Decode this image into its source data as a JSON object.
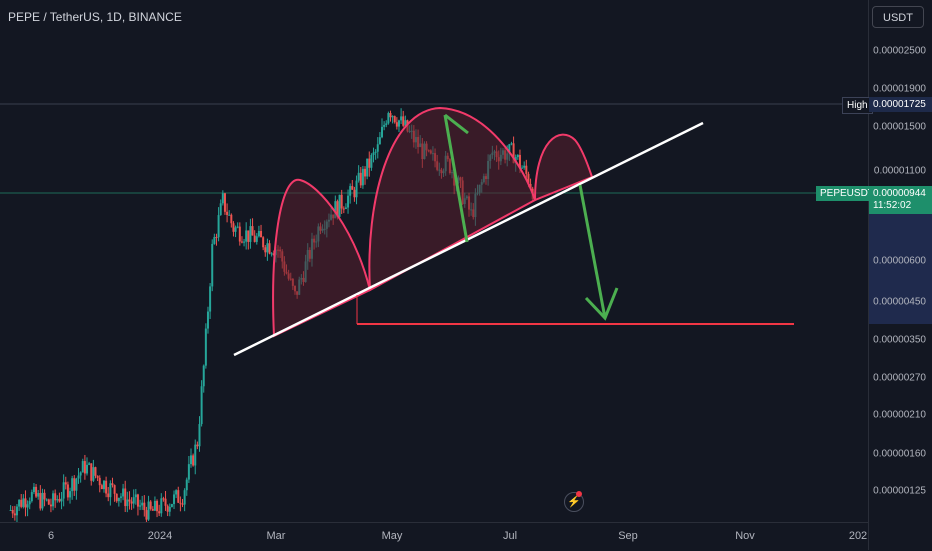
{
  "header": {
    "title": "PEPE / TetherUS, 1D, BINANCE"
  },
  "currency_button": "USDT",
  "price_axis": {
    "labels": [
      "0.00002500",
      "0.00001900",
      "0.00001500",
      "0.00001100",
      "0.00000600",
      "0.00000450",
      "0.00000350",
      "0.00000270",
      "0.00000210",
      "0.00000160",
      "0.00000125"
    ]
  },
  "time_axis": {
    "labels": [
      "6",
      "2024",
      "Mar",
      "May",
      "Jul",
      "Sep",
      "Nov",
      "202"
    ]
  },
  "markers": {
    "high_label": "High",
    "high_value": "0.00001725",
    "symbol": "PEPEUSDT",
    "last_price": "0.00000944",
    "countdown": "11:52:02"
  },
  "colors": {
    "background": "#131722",
    "candle_up": "#26a69a",
    "candle_down": "#ef5350",
    "arc": "#f23a6a",
    "arc_fill": "#5a1f2e",
    "neckline": "#ffffff",
    "target_line": "#f23645",
    "arrow": "#4caf50"
  },
  "chart_data": {
    "type": "candlestick",
    "symbol": "PEPEUSDT",
    "exchange": "BINANCE",
    "interval": "1D",
    "y_scale": "log",
    "ylim": [
      1.05e-06,
      3e-05
    ],
    "x_range": [
      "2023-11-26",
      "2025-01-08"
    ],
    "key_levels": {
      "high": 1.725e-05,
      "last": 9.44e-06,
      "target": 3.95e-06
    },
    "closes_approx": [
      [
        "2023-12-01",
        1.1e-06
      ],
      [
        "2023-12-10",
        1.22e-06
      ],
      [
        "2023-12-20",
        1.14e-06
      ],
      [
        "2023-12-30",
        1.32e-06
      ],
      [
        "2024-01-05",
        1.48e-06
      ],
      [
        "2024-01-15",
        1.3e-06
      ],
      [
        "2024-01-25",
        1.18e-06
      ],
      [
        "2024-02-05",
        1.08e-06
      ],
      [
        "2024-02-20",
        1.22e-06
      ],
      [
        "2024-02-27",
        1.75e-06
      ],
      [
        "2024-03-01",
        2.9e-06
      ],
      [
        "2024-03-05",
        6.5e-06
      ],
      [
        "2024-03-10",
        9e-06
      ],
      [
        "2024-03-15",
        7.5e-06
      ],
      [
        "2024-03-25",
        7e-06
      ],
      [
        "2024-04-05",
        6.5e-06
      ],
      [
        "2024-04-13",
        4.7e-06
      ],
      [
        "2024-04-25",
        7.8e-06
      ],
      [
        "2024-05-10",
        9.5e-06
      ],
      [
        "2024-05-22",
        1.28e-05
      ],
      [
        "2024-05-27",
        1.7e-05
      ],
      [
        "2024-06-05",
        1.45e-05
      ],
      [
        "2024-06-15",
        1.2e-05
      ],
      [
        "2024-06-25",
        1.15e-05
      ],
      [
        "2024-07-05",
        8.2e-06
      ],
      [
        "2024-07-15",
        1.25e-05
      ],
      [
        "2024-07-25",
        1.25e-05
      ],
      [
        "2024-08-01",
        1.05e-05
      ],
      [
        "2024-08-04",
        9.44e-06
      ]
    ]
  }
}
